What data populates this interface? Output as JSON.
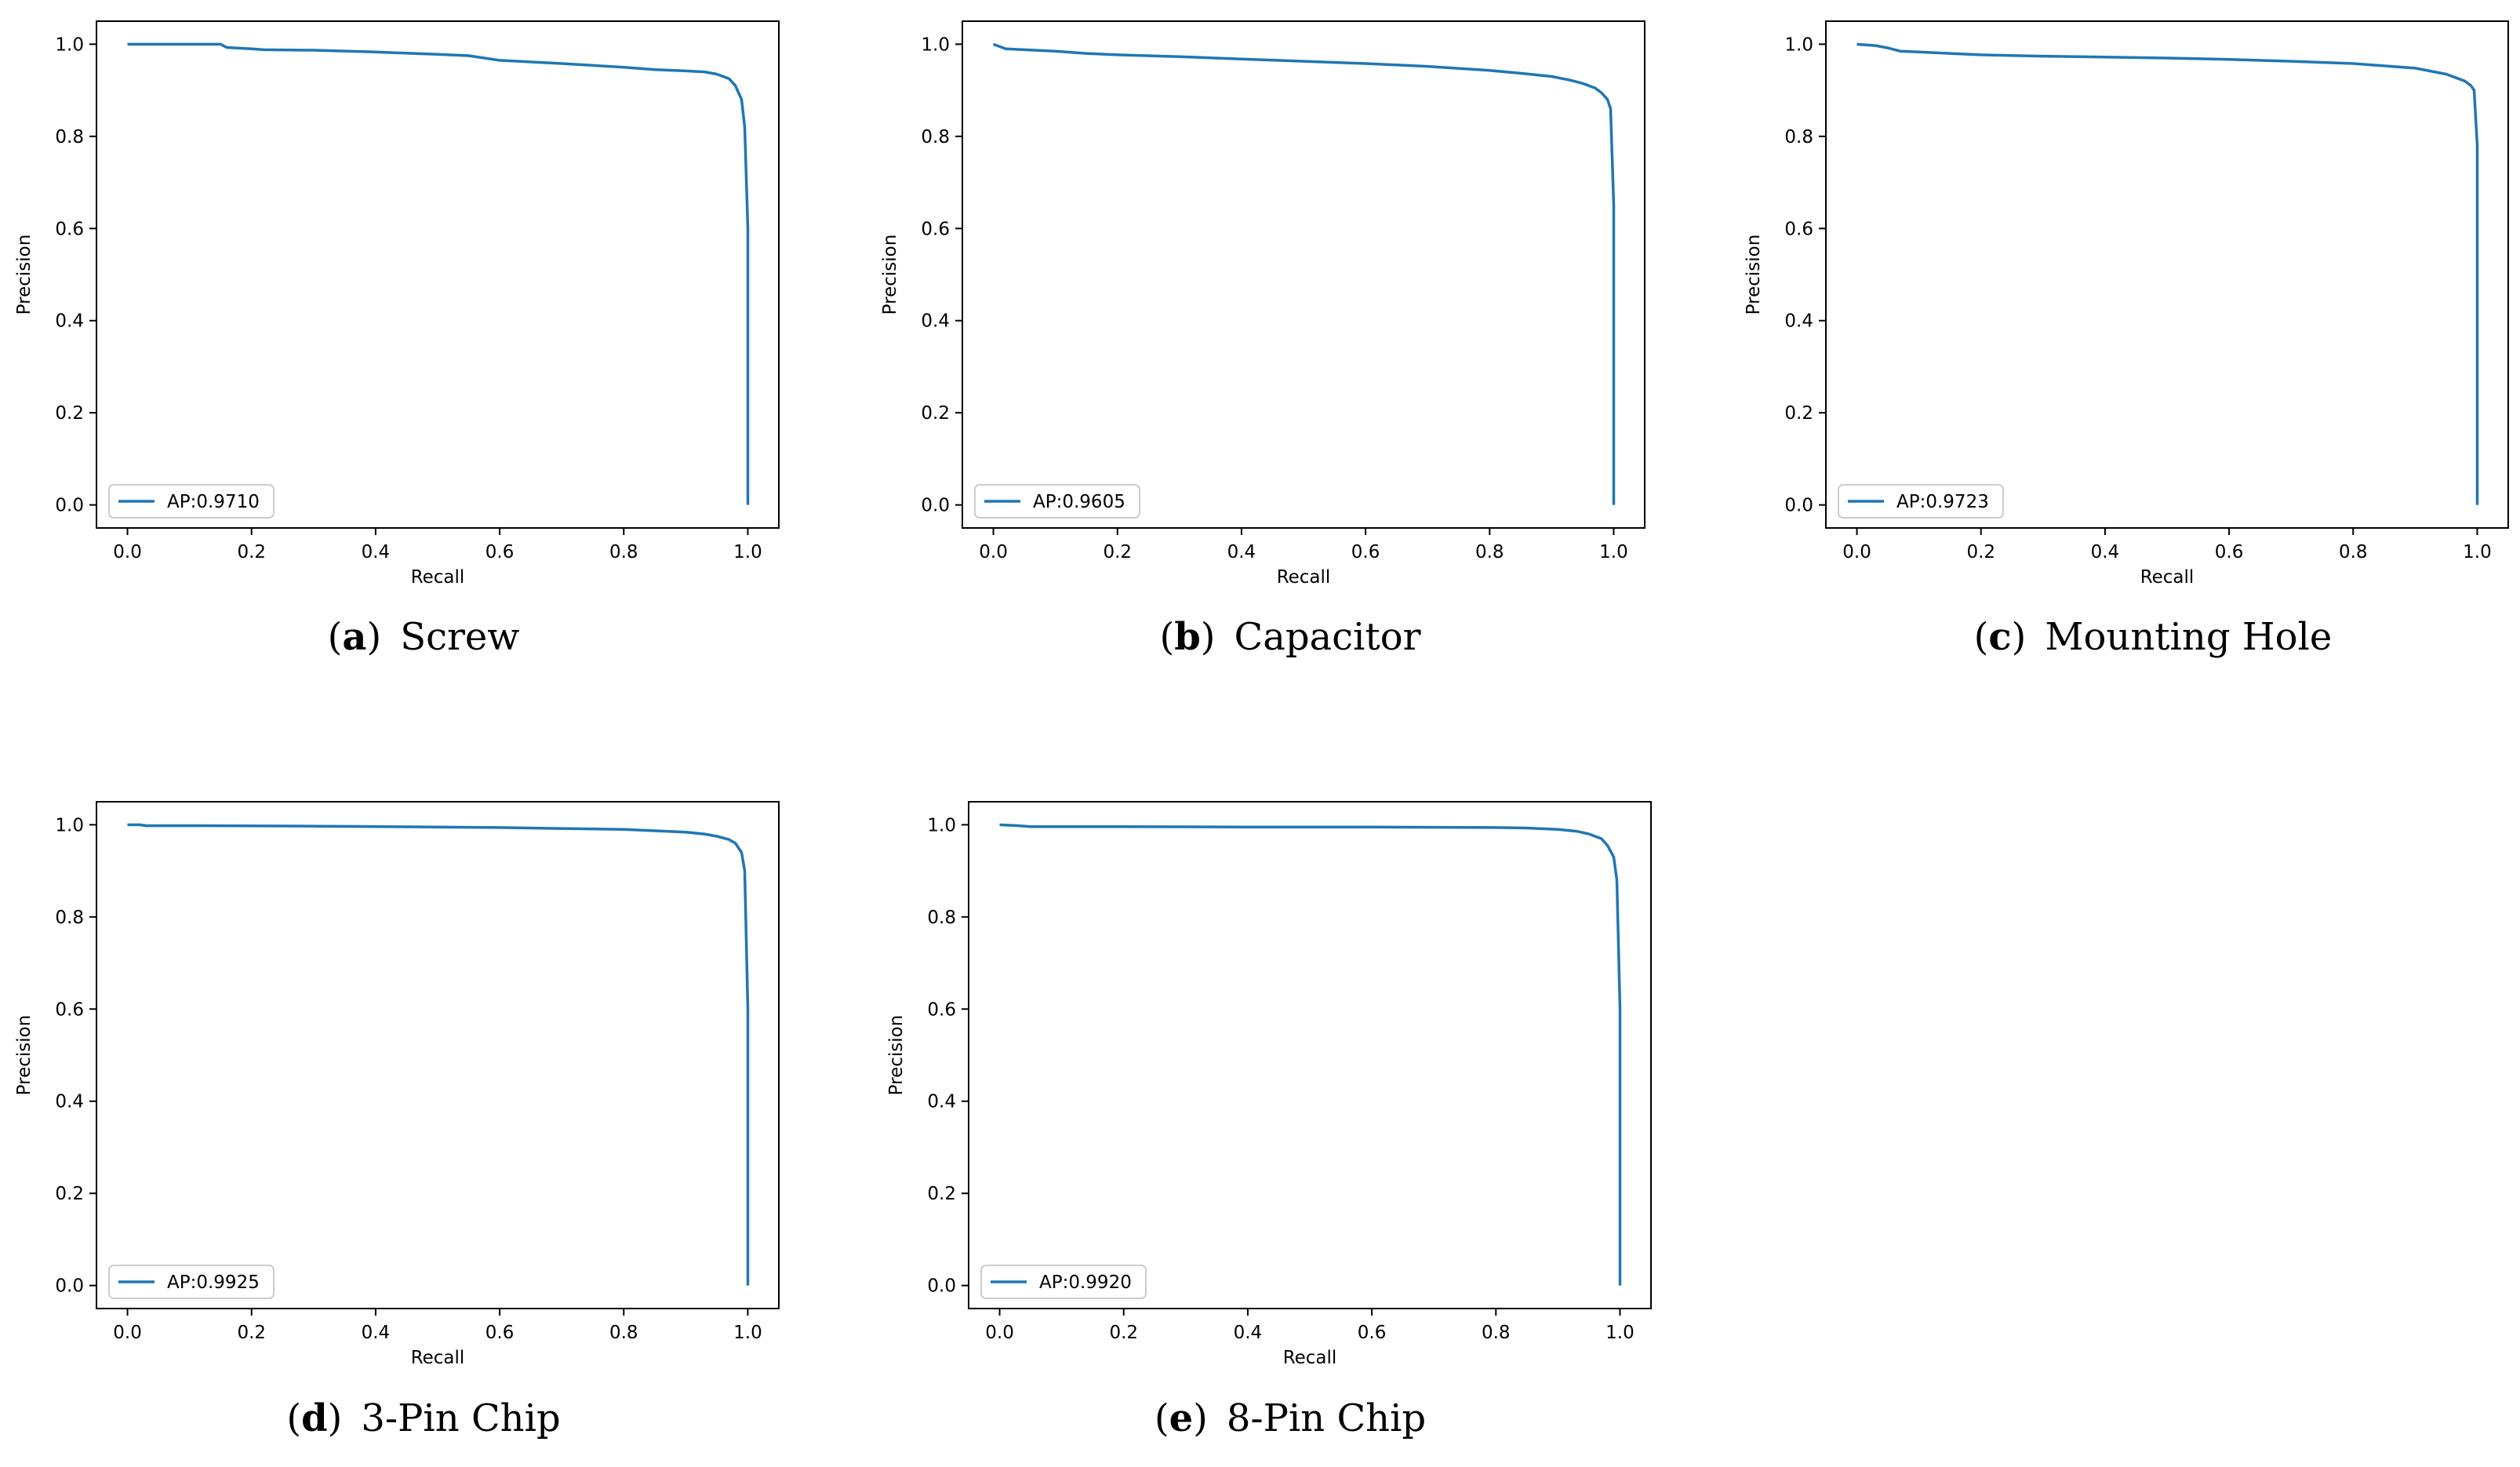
{
  "chart_data": [
    {
      "type": "line",
      "caption_label": "a",
      "caption_text": "Screw",
      "xlabel": "Recall",
      "ylabel": "Precision",
      "xlim": [
        -0.05,
        1.05
      ],
      "ylim": [
        -0.05,
        1.05
      ],
      "xticks": [
        "0.0",
        "0.2",
        "0.4",
        "0.6",
        "0.8",
        "1.0"
      ],
      "yticks": [
        "0.0",
        "0.2",
        "0.4",
        "0.6",
        "0.8",
        "1.0"
      ],
      "legend_placement": "lower-left",
      "series": [
        {
          "name": "AP:0.9710",
          "x": [
            0.0,
            0.05,
            0.15,
            0.16,
            0.2,
            0.22,
            0.3,
            0.4,
            0.5,
            0.55,
            0.6,
            0.7,
            0.8,
            0.85,
            0.9,
            0.93,
            0.95,
            0.97,
            0.98,
            0.99,
            0.995,
            1.0,
            1.0,
            1.0
          ],
          "y": [
            1.0,
            1.0,
            1.0,
            0.993,
            0.99,
            0.988,
            0.987,
            0.983,
            0.978,
            0.975,
            0.965,
            0.958,
            0.95,
            0.945,
            0.942,
            0.94,
            0.935,
            0.925,
            0.91,
            0.88,
            0.82,
            0.6,
            0.2,
            0.0
          ]
        }
      ],
      "color": "#1f77b4"
    },
    {
      "type": "line",
      "caption_label": "b",
      "caption_text": "Capacitor",
      "xlabel": "Recall",
      "ylabel": "Precision",
      "xlim": [
        -0.05,
        1.05
      ],
      "ylim": [
        -0.05,
        1.05
      ],
      "xticks": [
        "0.0",
        "0.2",
        "0.4",
        "0.6",
        "0.8",
        "1.0"
      ],
      "yticks": [
        "0.0",
        "0.2",
        "0.4",
        "0.6",
        "0.8",
        "1.0"
      ],
      "legend_placement": "lower-left",
      "series": [
        {
          "name": "AP:0.9605",
          "x": [
            0.0,
            0.02,
            0.05,
            0.1,
            0.15,
            0.2,
            0.3,
            0.4,
            0.5,
            0.6,
            0.7,
            0.8,
            0.85,
            0.9,
            0.93,
            0.95,
            0.97,
            0.98,
            0.99,
            0.995,
            1.0,
            1.0,
            1.0
          ],
          "y": [
            1.0,
            0.99,
            0.988,
            0.985,
            0.98,
            0.977,
            0.973,
            0.968,
            0.963,
            0.958,
            0.952,
            0.943,
            0.937,
            0.93,
            0.922,
            0.915,
            0.905,
            0.895,
            0.88,
            0.86,
            0.65,
            0.2,
            0.0
          ]
        }
      ],
      "color": "#1f77b4"
    },
    {
      "type": "line",
      "caption_label": "c",
      "caption_text": "Mounting Hole",
      "xlabel": "Recall",
      "ylabel": "Precision",
      "xlim": [
        -0.05,
        1.05
      ],
      "ylim": [
        -0.05,
        1.05
      ],
      "xticks": [
        "0.0",
        "0.2",
        "0.4",
        "0.6",
        "0.8",
        "1.0"
      ],
      "yticks": [
        "0.0",
        "0.2",
        "0.4",
        "0.6",
        "0.8",
        "1.0"
      ],
      "legend_placement": "lower-left",
      "series": [
        {
          "name": "AP:0.9723",
          "x": [
            0.0,
            0.03,
            0.05,
            0.07,
            0.1,
            0.15,
            0.2,
            0.3,
            0.4,
            0.5,
            0.6,
            0.7,
            0.8,
            0.9,
            0.95,
            0.98,
            0.99,
            0.995,
            1.0,
            1.0,
            1.0
          ],
          "y": [
            1.0,
            0.997,
            0.992,
            0.985,
            0.983,
            0.98,
            0.977,
            0.974,
            0.972,
            0.97,
            0.967,
            0.963,
            0.958,
            0.948,
            0.935,
            0.92,
            0.91,
            0.9,
            0.78,
            0.2,
            0.0
          ]
        }
      ],
      "color": "#1f77b4"
    },
    {
      "type": "line",
      "caption_label": "d",
      "caption_text": "3-Pin Chip",
      "xlabel": "Recall",
      "ylabel": "Precision",
      "xlim": [
        -0.05,
        1.05
      ],
      "ylim": [
        -0.05,
        1.05
      ],
      "xticks": [
        "0.0",
        "0.2",
        "0.4",
        "0.6",
        "0.8",
        "1.0"
      ],
      "yticks": [
        "0.0",
        "0.2",
        "0.4",
        "0.6",
        "0.8",
        "1.0"
      ],
      "legend_placement": "lower-left",
      "series": [
        {
          "name": "AP:0.9925",
          "x": [
            0.0,
            0.02,
            0.03,
            0.1,
            0.3,
            0.5,
            0.6,
            0.7,
            0.8,
            0.85,
            0.9,
            0.93,
            0.95,
            0.97,
            0.98,
            0.99,
            0.995,
            1.0,
            1.0,
            1.0
          ],
          "y": [
            1.0,
            1.0,
            0.998,
            0.998,
            0.997,
            0.995,
            0.994,
            0.992,
            0.99,
            0.987,
            0.984,
            0.98,
            0.975,
            0.968,
            0.96,
            0.94,
            0.9,
            0.6,
            0.2,
            0.0
          ]
        }
      ],
      "color": "#1f77b4"
    },
    {
      "type": "line",
      "caption_label": "e",
      "caption_text": "8-Pin Chip",
      "xlabel": "Recall",
      "ylabel": "Precision",
      "xlim": [
        -0.05,
        1.05
      ],
      "ylim": [
        -0.05,
        1.05
      ],
      "xticks": [
        "0.0",
        "0.2",
        "0.4",
        "0.6",
        "0.8",
        "1.0"
      ],
      "yticks": [
        "0.0",
        "0.2",
        "0.4",
        "0.6",
        "0.8",
        "1.0"
      ],
      "legend_placement": "lower-left",
      "series": [
        {
          "name": "AP:0.9920",
          "x": [
            0.0,
            0.03,
            0.05,
            0.2,
            0.4,
            0.6,
            0.8,
            0.85,
            0.9,
            0.93,
            0.95,
            0.97,
            0.98,
            0.99,
            0.995,
            1.0,
            1.0,
            1.0
          ],
          "y": [
            1.0,
            0.998,
            0.996,
            0.996,
            0.995,
            0.995,
            0.994,
            0.993,
            0.99,
            0.986,
            0.98,
            0.97,
            0.955,
            0.93,
            0.88,
            0.6,
            0.2,
            0.0
          ]
        }
      ],
      "color": "#1f77b4"
    }
  ]
}
